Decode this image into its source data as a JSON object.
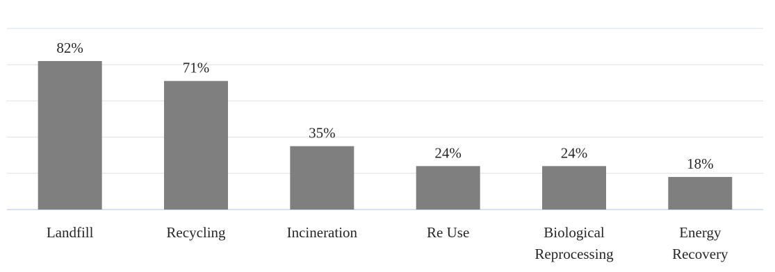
{
  "chart_data": {
    "type": "bar",
    "title": "",
    "xlabel": "",
    "ylabel": "",
    "categories": [
      [
        "Landfill"
      ],
      [
        "Recycling"
      ],
      [
        "Incineration"
      ],
      [
        "Re Use"
      ],
      [
        "Biological",
        "Reprocessing"
      ],
      [
        "Energy",
        "Recovery"
      ]
    ],
    "values": [
      82,
      71,
      35,
      24,
      24,
      18
    ],
    "value_labels": [
      "82%",
      "71%",
      "35%",
      "24%",
      "24%",
      "18%"
    ],
    "unit": "%",
    "ylim": [
      0,
      100
    ],
    "grid": true,
    "y_axis_labels_shown": false,
    "legend": "none",
    "colors": {
      "bar": "#7f7f7f",
      "grid": "#d5e1f0",
      "text": "#262626"
    }
  }
}
